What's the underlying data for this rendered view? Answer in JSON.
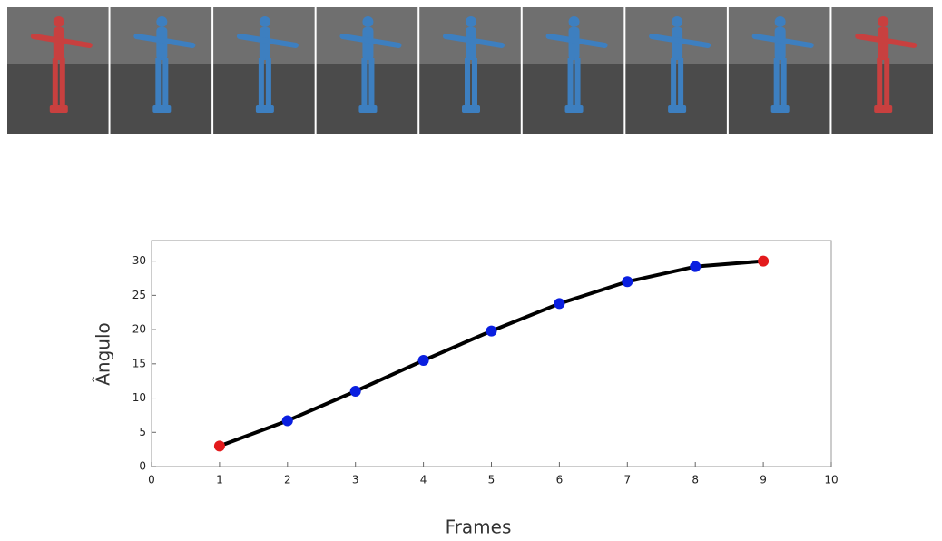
{
  "chart_data": {
    "type": "line",
    "x_label": "Frames",
    "y_label": "Ângulo",
    "x": [
      1,
      2,
      3,
      4,
      5,
      6,
      7,
      8,
      9
    ],
    "values": [
      3,
      6.7,
      11,
      15.5,
      19.8,
      23.8,
      27,
      29.2,
      30
    ],
    "line_color": "#000000",
    "marker_colors": [
      "#e31a1c",
      "#0a1fe0",
      "#0a1fe0",
      "#0a1fe0",
      "#0a1fe0",
      "#0a1fe0",
      "#0a1fe0",
      "#0a1fe0",
      "#e31a1c"
    ],
    "xlim": [
      0,
      10
    ],
    "ylim": [
      0,
      33
    ],
    "xticks": [
      0,
      1,
      2,
      3,
      4,
      5,
      6,
      7,
      8,
      9,
      10
    ],
    "yticks": [
      0,
      5,
      10,
      15,
      20,
      25,
      30
    ],
    "grid": false
  }
}
